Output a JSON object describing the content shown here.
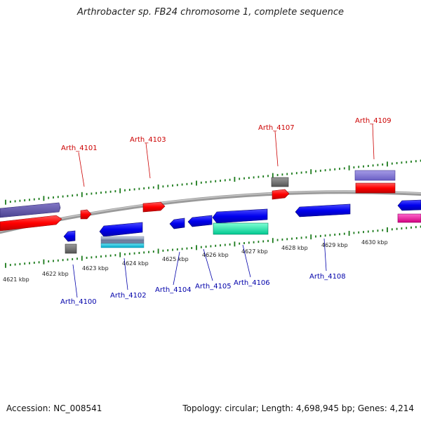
{
  "title": "Arthrobacter sp. FB24 chromosome 1, complete sequence",
  "footer": {
    "accession": "Accession: NC_008541",
    "summary": "Topology: circular; Length: 4,698,945 bp; Genes: 4,214"
  },
  "colors": {
    "forward_label": "#cc0000",
    "reverse_label": "#0000aa",
    "tick": "#1a7a1a",
    "backbone": "#8a8a8a"
  },
  "kbp_labels": [
    "4621 kbp",
    "4622 kbp",
    "4623 kbp",
    "4624 kbp",
    "4625 kbp",
    "4626 kbp",
    "4627 kbp",
    "4628 kbp",
    "4629 kbp",
    "4630 kbp"
  ],
  "genes_forward": [
    {
      "label": "Arth_4101"
    },
    {
      "label": "Arth_4103"
    },
    {
      "label": "Arth_4107"
    },
    {
      "label": "Arth_4109"
    }
  ],
  "genes_reverse": [
    {
      "label": "Arth_4100"
    },
    {
      "label": "Arth_4102"
    },
    {
      "label": "Arth_4104"
    },
    {
      "label": "Arth_4105"
    },
    {
      "label": "Arth_4106"
    },
    {
      "label": "Arth_4108"
    }
  ]
}
